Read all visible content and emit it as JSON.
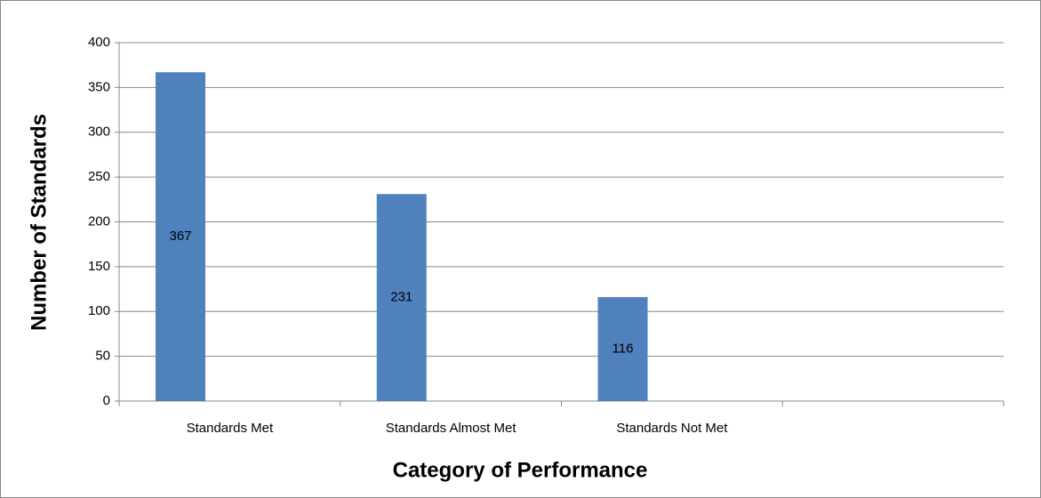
{
  "chart_data": {
    "type": "bar",
    "x_label": "Category of Performance",
    "y_label": "Number of Standards",
    "categories": [
      "Standards Met",
      "Standards Almost Met",
      "Standards Not Met",
      null
    ],
    "values": [
      367,
      231,
      116,
      null
    ],
    "color": "#4f81bd",
    "ylim": [
      0,
      400
    ],
    "yticks": [
      0,
      50,
      100,
      150,
      200,
      250,
      300,
      350,
      400
    ],
    "grid": true
  }
}
